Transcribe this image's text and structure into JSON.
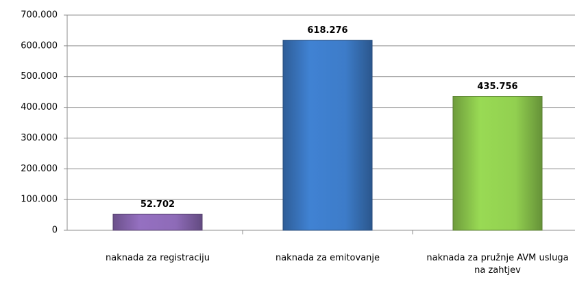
{
  "chart_data": {
    "type": "bar",
    "categories": [
      "naknada za registraciju",
      "naknada za emitovanje",
      "naknada za pružnje AVM usluga na zahtjev"
    ],
    "values": [
      52702,
      618276,
      435756
    ],
    "value_labels": [
      "52.702",
      "618.276",
      "435.756"
    ],
    "colors": [
      "#8e6bb8",
      "#3d7cc9",
      "#92d050"
    ],
    "ylim": [
      0,
      700000
    ],
    "yticks": [
      0,
      {
        "value": 100000,
        "label": "100.000"
      },
      {
        "value": 200000,
        "label": "200.000"
      },
      {
        "value": 300000,
        "label": "300.000"
      },
      {
        "value": 400000,
        "label": "400.000"
      },
      {
        "value": 500000,
        "label": "500.000"
      },
      {
        "value": 600000,
        "label": "600.000"
      },
      {
        "value": 700000,
        "label": "700.000"
      }
    ],
    "grid": true
  }
}
